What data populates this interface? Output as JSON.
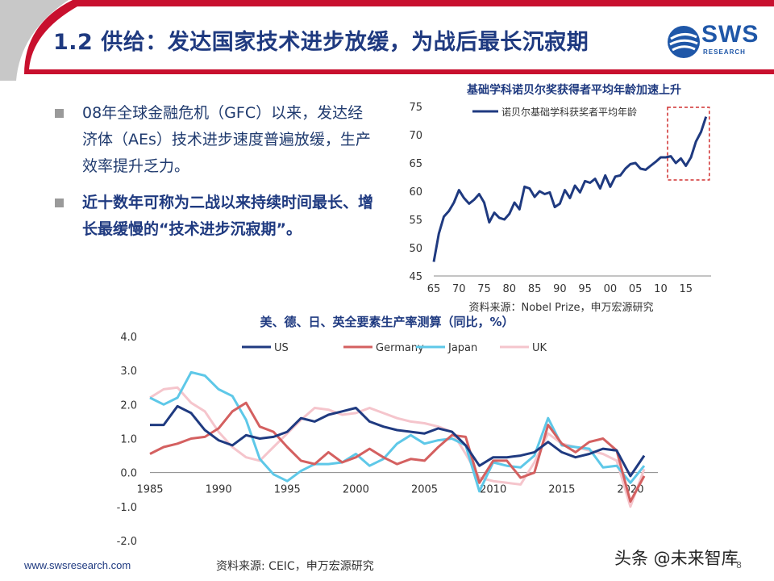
{
  "slide": {
    "title": "1.2 供给：发达国家技术进步放缓，为战后最长沉寂期",
    "logo_text": "SWS",
    "logo_sub": "RESEARCH",
    "bullets": [
      "08年全球金融危机（GFC）以来，发达经济体（AEs）技术进步速度普遍放缓，生产效率提升乏力。",
      "近十数年可称为二战以来持续时间最长、增长最缓慢的“技术进步沉寂期”。"
    ],
    "footer_url": "www.swsresearch.com",
    "footer_source": "资料来源: CEIC，申万宏源研究",
    "page_number": "8",
    "watermark": "头条 @未来智库",
    "colors": {
      "title": "#1f3a80",
      "brand_blue": "#1f57a8",
      "accent_red": "#c8102e",
      "bar_gray": "#c8c8c8"
    }
  },
  "chart_data": [
    {
      "type": "line",
      "title": "基础学科诺贝尔奖获得者平均年龄加速上升",
      "source": "资料来源：Nobel Prize，申万宏源研究",
      "x_tick_labels": [
        "65",
        "70",
        "75",
        "80",
        "85",
        "90",
        "95",
        "00",
        "05",
        "10",
        "15"
      ],
      "y_ticks": [
        45,
        50,
        55,
        60,
        65,
        70,
        75
      ],
      "ylim": [
        45,
        75
      ],
      "xlim": [
        1965,
        2020
      ],
      "grid": false,
      "legend": "top-left",
      "highlight_box_x": [
        2012,
        2019
      ],
      "highlight_box_color": "#d03030",
      "series": [
        {
          "name": "诺贝尔基础学科获奖者平均年龄",
          "color": "#1f3a80",
          "x": [
            1965,
            1966,
            1967,
            1968,
            1969,
            1970,
            1971,
            1972,
            1973,
            1974,
            1975,
            1976,
            1977,
            1978,
            1979,
            1980,
            1981,
            1982,
            1983,
            1984,
            1985,
            1986,
            1987,
            1988,
            1989,
            1990,
            1991,
            1992,
            1993,
            1994,
            1995,
            1996,
            1997,
            1998,
            1999,
            2000,
            2001,
            2002,
            2003,
            2004,
            2005,
            2006,
            2007,
            2008,
            2009,
            2010,
            2011,
            2012,
            2013,
            2014,
            2015,
            2016,
            2017,
            2018,
            2019
          ],
          "y": [
            47.5,
            52.5,
            55.5,
            56.5,
            58.0,
            60.2,
            58.8,
            57.8,
            58.5,
            59.5,
            58.0,
            54.5,
            56.2,
            55.3,
            55.0,
            56.0,
            58.0,
            56.8,
            60.8,
            60.5,
            59.0,
            60.0,
            59.5,
            59.8,
            57.2,
            57.8,
            60.2,
            58.8,
            61.0,
            59.8,
            61.8,
            61.5,
            62.2,
            60.5,
            62.8,
            60.8,
            62.6,
            62.8,
            64.0,
            64.8,
            65.0,
            64.0,
            63.8,
            64.5,
            65.2,
            66.0,
            66.0,
            66.2,
            65.0,
            65.8,
            64.5,
            66.0,
            68.8,
            70.5,
            73.2
          ]
        }
      ]
    },
    {
      "type": "line",
      "title": "美、德、日、英全要素生产率测算（同比，%）",
      "x_tick_labels": [
        "1985",
        "1990",
        "1995",
        "2000",
        "2005",
        "2010",
        "2015",
        "2020"
      ],
      "y_tick_labels": [
        "-2.0",
        "-1.0",
        "0.0",
        "1.0",
        "2.0",
        "3.0",
        "4.0"
      ],
      "ylim": [
        -2,
        4
      ],
      "xlim": [
        1985,
        2022
      ],
      "grid": false,
      "legend": "top",
      "series": [
        {
          "name": "US",
          "color": "#1f3a80",
          "x": [
            1985,
            1986,
            1987,
            1988,
            1989,
            1990,
            1991,
            1992,
            1993,
            1994,
            1995,
            1996,
            1997,
            1998,
            1999,
            2000,
            2001,
            2002,
            2003,
            2004,
            2005,
            2006,
            2007,
            2008,
            2009,
            2010,
            2011,
            2012,
            2013,
            2014,
            2015,
            2016,
            2017,
            2018,
            2019,
            2020,
            2021
          ],
          "y": [
            1.4,
            1.4,
            1.95,
            1.75,
            1.25,
            0.95,
            0.8,
            1.1,
            1.0,
            1.05,
            1.2,
            1.6,
            1.5,
            1.7,
            1.8,
            1.9,
            1.5,
            1.35,
            1.25,
            1.2,
            1.15,
            1.3,
            1.2,
            0.8,
            0.2,
            0.45,
            0.45,
            0.5,
            0.6,
            0.9,
            0.6,
            0.45,
            0.55,
            0.7,
            0.65,
            -0.1,
            0.5
          ]
        },
        {
          "name": "Germany",
          "color": "#d46060",
          "x": [
            1985,
            1986,
            1987,
            1988,
            1989,
            1990,
            1991,
            1992,
            1993,
            1994,
            1995,
            1996,
            1997,
            1998,
            1999,
            2000,
            2001,
            2002,
            2003,
            2004,
            2005,
            2006,
            2007,
            2008,
            2009,
            2010,
            2011,
            2012,
            2013,
            2014,
            2015,
            2016,
            2017,
            2018,
            2019,
            2020,
            2021
          ],
          "y": [
            0.55,
            0.75,
            0.85,
            1.0,
            1.05,
            1.3,
            1.8,
            2.05,
            1.35,
            1.2,
            0.75,
            0.35,
            0.25,
            0.6,
            0.3,
            0.45,
            0.7,
            0.45,
            0.25,
            0.4,
            0.35,
            0.75,
            1.1,
            1.05,
            -0.3,
            0.35,
            0.35,
            -0.15,
            0.0,
            1.4,
            0.85,
            0.6,
            0.9,
            1.0,
            0.65,
            -0.85,
            -0.1
          ]
        },
        {
          "name": "Japan",
          "color": "#5ec8e8",
          "x": [
            1985,
            1986,
            1987,
            1988,
            1989,
            1990,
            1991,
            1992,
            1993,
            1994,
            1995,
            1996,
            1997,
            1998,
            1999,
            2000,
            2001,
            2002,
            2003,
            2004,
            2005,
            2006,
            2007,
            2008,
            2009,
            2010,
            2011,
            2012,
            2013,
            2014,
            2015,
            2016,
            2017,
            2018,
            2019,
            2020,
            2021
          ],
          "y": [
            2.2,
            2.0,
            2.2,
            2.95,
            2.85,
            2.45,
            2.25,
            1.55,
            0.4,
            -0.05,
            -0.25,
            0.05,
            0.25,
            0.25,
            0.3,
            0.55,
            0.2,
            0.4,
            0.85,
            1.1,
            0.85,
            0.95,
            1.0,
            0.8,
            -0.55,
            0.3,
            0.2,
            0.15,
            0.5,
            1.6,
            0.8,
            0.75,
            0.7,
            0.15,
            0.2,
            -0.3,
            0.2
          ]
        },
        {
          "name": "UK",
          "color": "#f5c5cc",
          "x": [
            1985,
            1986,
            1987,
            1988,
            1989,
            1990,
            1991,
            1992,
            1993,
            1994,
            1995,
            1996,
            1997,
            1998,
            1999,
            2000,
            2001,
            2002,
            2003,
            2004,
            2005,
            2006,
            2007,
            2008,
            2009,
            2010,
            2011,
            2012,
            2013,
            2014,
            2015,
            2016,
            2017,
            2018,
            2019,
            2020,
            2021
          ],
          "y": [
            2.2,
            2.45,
            2.5,
            2.05,
            1.8,
            1.2,
            0.75,
            0.45,
            0.35,
            0.75,
            1.15,
            1.55,
            1.9,
            1.85,
            1.7,
            1.75,
            1.9,
            1.75,
            1.6,
            1.5,
            1.45,
            1.35,
            1.2,
            0.55,
            -0.15,
            -0.25,
            -0.3,
            -0.35,
            0.3,
            1.15,
            0.85,
            0.75,
            0.65,
            0.55,
            0.35,
            -1.0,
            0.1
          ]
        }
      ]
    }
  ]
}
